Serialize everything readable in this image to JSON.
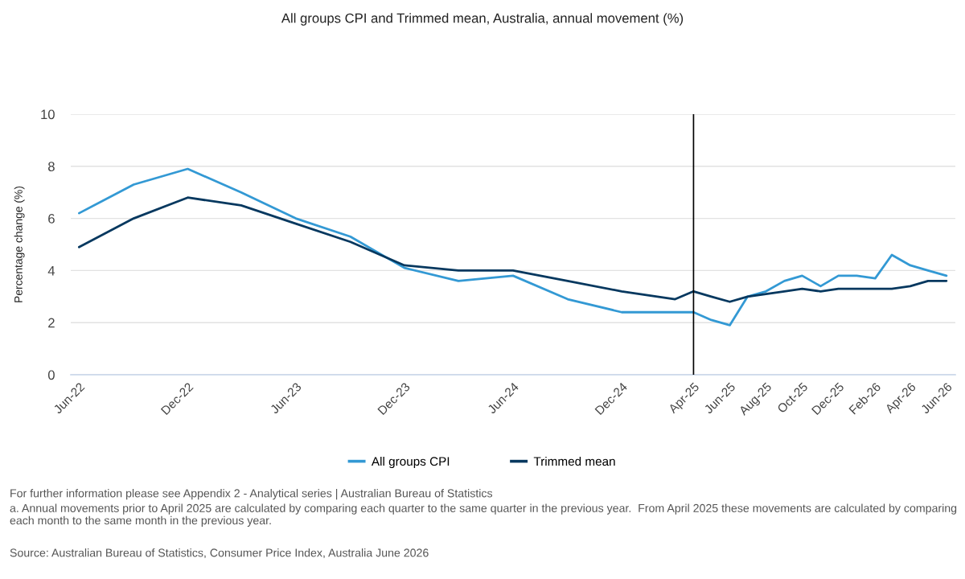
{
  "chart_data": {
    "type": "line",
    "title": "All groups CPI and Trimmed mean, Australia, annual movement (%)",
    "ylabel": "Percentage change (%)",
    "x": [
      "2022-06",
      "2022-09",
      "2022-12",
      "2023-03",
      "2023-06",
      "2023-09",
      "2023-12",
      "2024-03",
      "2024-06",
      "2024-09",
      "2024-12",
      "2025-03",
      "2025-04",
      "2025-05",
      "2025-06",
      "2025-07",
      "2025-08",
      "2025-09",
      "2025-10",
      "2025-11",
      "2025-12",
      "2026-01",
      "2026-02",
      "2026-03",
      "2026-04",
      "2026-05",
      "2026-06"
    ],
    "series": [
      {
        "name": "All groups CPI",
        "color": "#3399d4",
        "values": [
          6.2,
          7.3,
          7.9,
          7.0,
          6.0,
          5.3,
          4.1,
          3.6,
          3.8,
          2.9,
          2.4,
          2.4,
          2.4,
          2.1,
          1.9,
          3.0,
          3.2,
          3.6,
          3.8,
          3.4,
          3.8,
          3.8,
          3.7,
          4.6,
          4.2,
          4.0,
          3.8
        ]
      },
      {
        "name": "Trimmed mean",
        "color": "#06385f",
        "values": [
          4.9,
          6.0,
          6.8,
          6.5,
          5.8,
          5.1,
          4.2,
          4.0,
          4.0,
          3.6,
          3.2,
          2.9,
          3.2,
          3.0,
          2.8,
          3.0,
          3.1,
          3.2,
          3.3,
          3.2,
          3.3,
          3.3,
          3.3,
          3.3,
          3.4,
          3.6,
          3.6
        ]
      }
    ],
    "xlim": [
      "2022-05-18",
      "2026-06-16"
    ],
    "xticks": [
      {
        "value": "2022-06",
        "label": "Jun-22"
      },
      {
        "value": "2022-12",
        "label": "Dec-22"
      },
      {
        "value": "2023-06",
        "label": "Jun-23"
      },
      {
        "value": "2023-12",
        "label": "Dec-23"
      },
      {
        "value": "2024-06",
        "label": "Jun-24"
      },
      {
        "value": "2024-12",
        "label": "Dec-24"
      },
      {
        "value": "2025-04",
        "label": "Apr-25"
      },
      {
        "value": "2025-06",
        "label": "Jun-25"
      },
      {
        "value": "2025-08",
        "label": "Aug-25"
      },
      {
        "value": "2025-10",
        "label": "Oct-25"
      },
      {
        "value": "2025-12",
        "label": "Dec-25"
      },
      {
        "value": "2026-02",
        "label": "Feb-26"
      },
      {
        "value": "2026-04",
        "label": "Apr-26"
      },
      {
        "value": "2026-06",
        "label": "Jun-26"
      }
    ],
    "ylim": [
      0,
      10
    ],
    "yticks": [
      0,
      2,
      4,
      6,
      8,
      10
    ],
    "ref_lines": [
      {
        "axis": "x",
        "value": "2025-04",
        "color": "#000000"
      }
    ],
    "grid": "y",
    "legend": "bottom",
    "annotations": [
      "For further information please see Appendix 2 - Analytical series | Australian Bureau of Statistics",
      "a. Annual movements prior to April 2025 are calculated by comparing each quarter to the same quarter in the previous year.  From April 2025 these movements are calculated by comparing each month to the same month in the previous year.",
      "Source: Australian Bureau of Statistics, Consumer Price Index, Australia June 2026"
    ]
  }
}
